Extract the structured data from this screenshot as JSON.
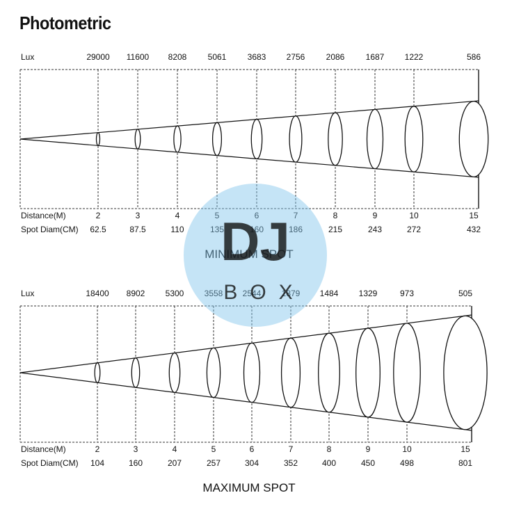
{
  "title": "Photometric",
  "watermark": {
    "big": "DJ",
    "small": "BOX",
    "color": "#7fc3ea"
  },
  "panels": [
    {
      "caption": "MINIMUM SPOT",
      "lux_label": "Lux",
      "distance_label": "Distance(M)",
      "spot_label": "Spot Diam(CM)",
      "lux": [
        "29000",
        "11600",
        "8208",
        "5061",
        "3683",
        "2756",
        "2086",
        "1687",
        "1222",
        "586"
      ],
      "distance": [
        "2",
        "3",
        "4",
        "5",
        "6",
        "7",
        "8",
        "9",
        "10",
        "15"
      ],
      "spot_diam": [
        "62.5",
        "87.5",
        "110",
        "135",
        "160",
        "186",
        "215",
        "243",
        "272",
        "432"
      ]
    },
    {
      "caption": "MAXIMUM SPOT",
      "lux_label": "Lux",
      "distance_label": "Distance(M)",
      "spot_label": "Spot Diam(CM)",
      "lux": [
        "18400",
        "8902",
        "5300",
        "3558",
        "2544",
        "1879",
        "1484",
        "1329",
        "973",
        "505"
      ],
      "distance": [
        "2",
        "3",
        "4",
        "5",
        "6",
        "7",
        "8",
        "9",
        "10",
        "15"
      ],
      "spot_diam": [
        "104",
        "160",
        "207",
        "257",
        "304",
        "352",
        "400",
        "450",
        "498",
        "801"
      ]
    }
  ]
}
